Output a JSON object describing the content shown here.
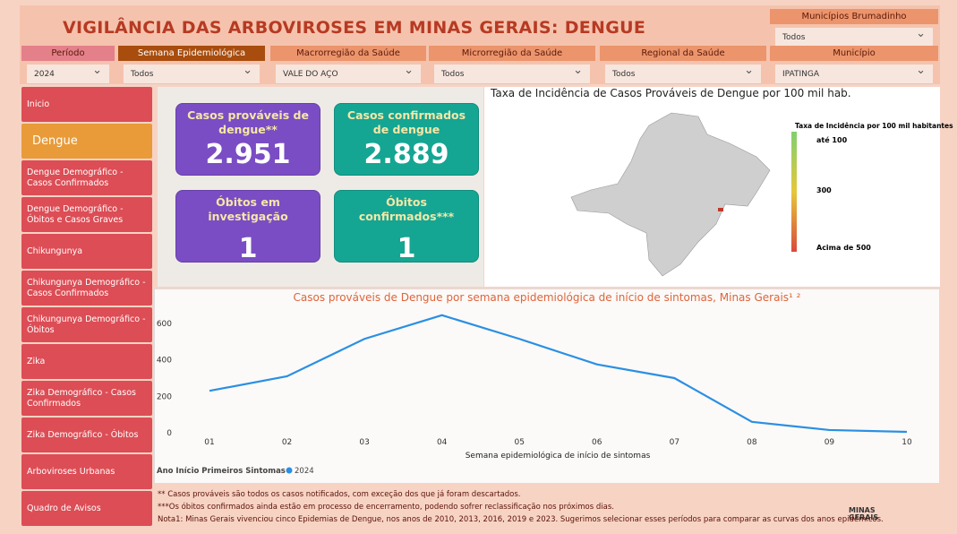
{
  "header": {
    "title": "VIGILÂNCIA DAS ARBOVIROSES EM MINAS GERAIS:  DENGUE",
    "municipios_filter": {
      "label": "Municípios Brumadinho",
      "value": "Todos"
    }
  },
  "filters": [
    {
      "label": "Período",
      "value": "2024"
    },
    {
      "label": "Semana Epidemiológica",
      "value": "Todos"
    },
    {
      "label": "Macrorregião da Saúde",
      "value": "VALE DO AÇO"
    },
    {
      "label": "Microrregião da Saúde",
      "value": "Todos"
    },
    {
      "label": "Regional da Saúde",
      "value": "Todos"
    },
    {
      "label": "Município",
      "value": "IPATINGA"
    }
  ],
  "sidebar": [
    "Inicio",
    "Dengue",
    "Dengue Demográfico - Casos Confirmados",
    "Dengue Demográfico - Óbitos e Casos Graves",
    "Chikungunya",
    "Chikungunya Demográfico - Casos Confirmados",
    "Chikungunya Demográfico - Óbitos",
    "Zika",
    "Zika Demográfico - Casos Confirmados",
    "Zika Demográfico - Óbitos",
    "Arboviroses Urbanas",
    "Quadro de Avisos"
  ],
  "kpis": [
    {
      "label": "Casos prováveis de dengue**",
      "value": "2.951"
    },
    {
      "label": "Casos confirmados de dengue",
      "value": "2.889"
    },
    {
      "label": "Óbitos em investigação",
      "value": "1"
    },
    {
      "label": "Óbitos confirmados***",
      "value": "1"
    }
  ],
  "map": {
    "title": "Taxa de Incidência de Casos Prováveis de Dengue por 100 mil hab.",
    "legend_title": "Taxa de Incidência por 100 mil habitantes",
    "legend_labels": [
      "até 100",
      "300",
      "Acima de 500"
    ]
  },
  "chart_data": {
    "type": "line",
    "title": "Casos prováveis de Dengue por semana epidemiológica de início de sintomas, Minas Gerais¹ ²",
    "x_label": "Semana epidemiológica de início de sintomas",
    "categories": [
      "01",
      "02",
      "03",
      "04",
      "05",
      "06",
      "07",
      "08",
      "09",
      "10"
    ],
    "series": [
      {
        "name": "2024",
        "color": "#2b8fe3",
        "values": [
          230,
          310,
          515,
          645,
          515,
          375,
          300,
          60,
          15,
          5
        ]
      }
    ],
    "legend_title": "Ano Início Primeiros Sintomas",
    "ylim": [
      0,
      680
    ],
    "yticks": [
      0,
      200,
      400,
      600
    ]
  },
  "footnotes": [
    "** Casos prováveis são todos os casos notificados, com exceção dos que já foram descartados.",
    "***Os óbitos confirmados ainda estão em processo de encerramento, podendo sofrer reclassificação nos próximos dias.",
    "Nota1: Minas Gerais vivenciou cinco Epidemias de Dengue, nos anos de 2010, 2013, 2016, 2019 e 2023. Sugerimos selecionar esses períodos para comparar as curvas dos anos epidêmicos."
  ],
  "logo": "MINAS GERAIS"
}
